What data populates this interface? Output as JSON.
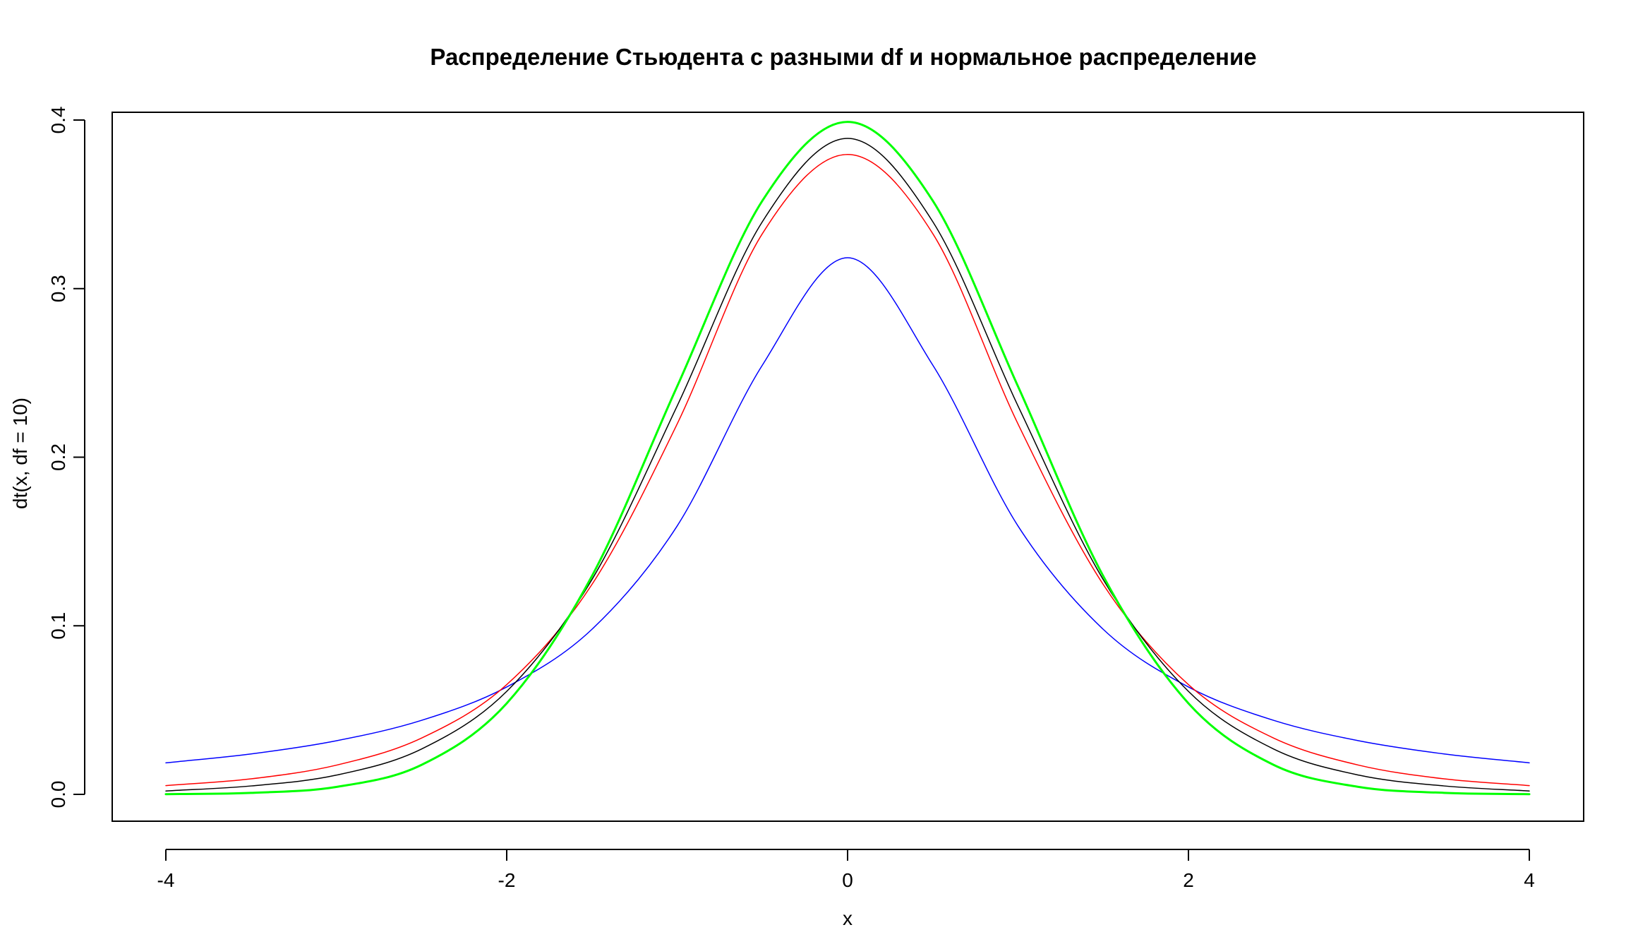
{
  "chart_data": {
    "type": "line",
    "title": "Распределение Стьюдента с разными df и нормальное распределение",
    "xlabel": "x",
    "ylabel": "dt(x, df = 10)",
    "xlim": [
      -4,
      4
    ],
    "ylim": [
      0,
      0.4
    ],
    "x_ticks": [
      -4,
      -2,
      0,
      2,
      4
    ],
    "x_tick_labels": [
      "-4",
      "-2",
      "0",
      "2",
      "4"
    ],
    "y_ticks": [
      0.0,
      0.1,
      0.2,
      0.3,
      0.4
    ],
    "y_tick_labels": [
      "0.0",
      "0.1",
      "0.2",
      "0.3",
      "0.4"
    ],
    "grid": false,
    "legend": "none",
    "x": [
      -4,
      -3.5,
      -3,
      -2.5,
      -2,
      -1.5,
      -1,
      -0.5,
      0,
      0.5,
      1,
      1.5,
      2,
      2.5,
      3,
      3.5,
      4
    ],
    "series": [
      {
        "color": "#0000ff",
        "line_width": 1.5,
        "values": [
          0.0187,
          0.024,
          0.0318,
          0.0439,
          0.0637,
          0.0979,
          0.1592,
          0.2546,
          0.3183,
          0.2546,
          0.1592,
          0.0979,
          0.0637,
          0.0439,
          0.0318,
          0.024,
          0.0187
        ]
      },
      {
        "color": "#ff0000",
        "line_width": 1.5,
        "values": [
          0.0052,
          0.0092,
          0.0173,
          0.0334,
          0.0651,
          0.1245,
          0.2197,
          0.3326,
          0.3796,
          0.3326,
          0.2197,
          0.1245,
          0.0651,
          0.0334,
          0.0173,
          0.0092,
          0.0052
        ]
      },
      {
        "color": "#000000",
        "line_width": 1.5,
        "values": [
          0.002,
          0.005,
          0.0114,
          0.0269,
          0.0611,
          0.1274,
          0.2304,
          0.3397,
          0.3891,
          0.3397,
          0.2304,
          0.1274,
          0.0611,
          0.0269,
          0.0114,
          0.005,
          0.002
        ]
      },
      {
        "color": "#00ff00",
        "line_width": 3,
        "values": [
          0.0001,
          0.0009,
          0.0044,
          0.0175,
          0.054,
          0.1295,
          0.242,
          0.3521,
          0.3989,
          0.3521,
          0.242,
          0.1295,
          0.054,
          0.0175,
          0.0044,
          0.0009,
          0.0001
        ]
      }
    ]
  }
}
